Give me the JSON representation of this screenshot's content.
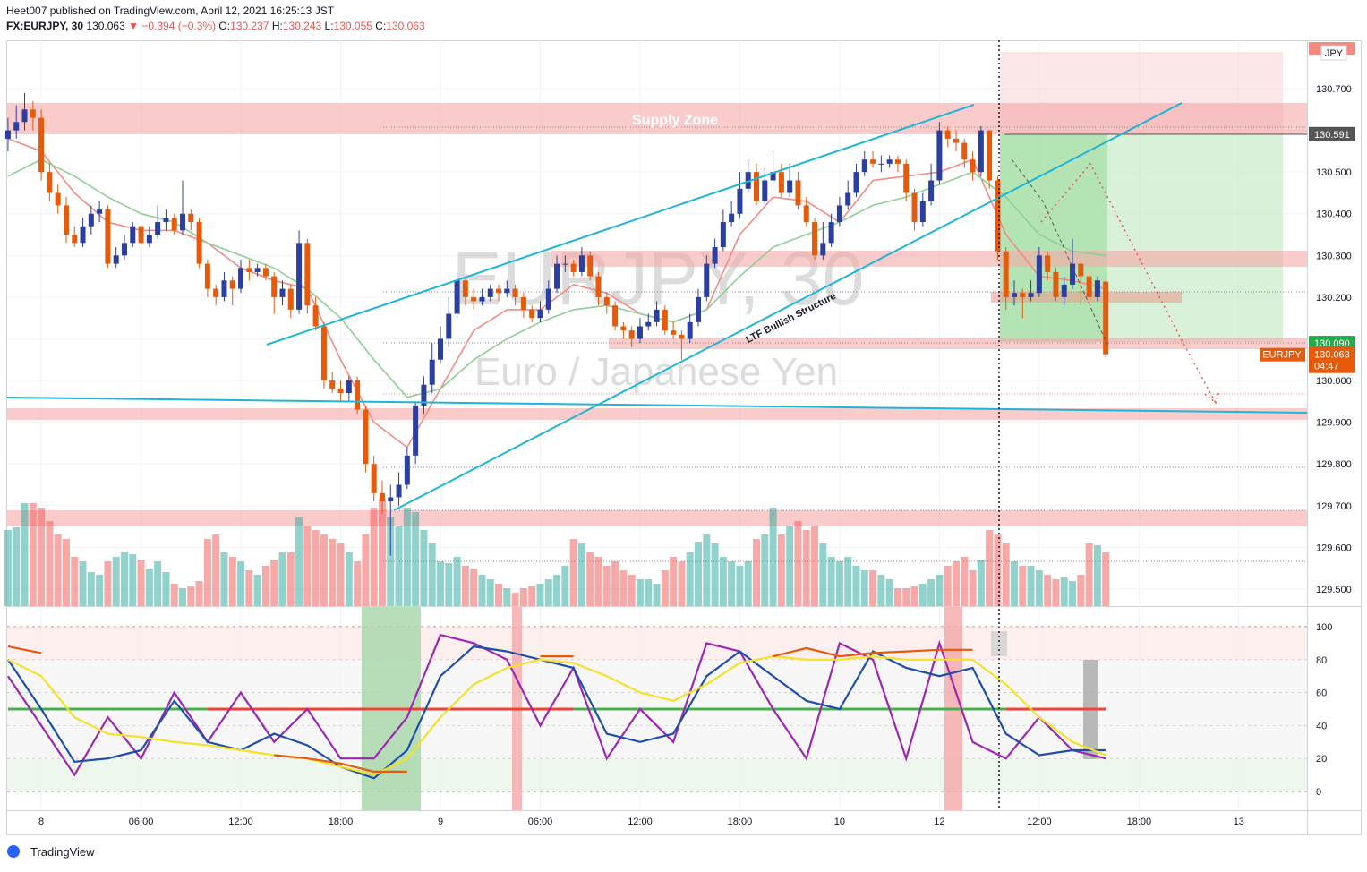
{
  "chart_data": {
    "type": "candlestick",
    "header": {
      "publisher": "Heet007 published on TradingView.com, April 12, 2021 16:25:13 JST",
      "symbol": "FX:EURJPY, 30",
      "change": "▼ −0.394 (−0.3%)",
      "ohlc_labels": [
        "O:",
        "H:",
        "L:",
        "C:"
      ]
    },
    "watermark": {
      "symbol": "EURJPY, 30",
      "name": "Euro / Japanese Yen"
    },
    "annotations": {
      "supply": "Supply Zone",
      "structure": "LTF Bullish Structure"
    },
    "footer": "TradingView",
    "axis_currency": "JPY",
    "last_label": "EURJPY",
    "countdown": "04:47",
    "up_color": "#2b3fa0",
    "down_color": "#e65a0c",
    "volume_up_color": "rgba(38,166,154,0.5)",
    "volume_down_color": "rgba(239,83,80,0.5)",
    "xlim": [
      -0.1,
      156.2
    ],
    "xticks": [
      {
        "value": 4,
        "label": "8"
      },
      {
        "value": 16,
        "label": "06:00"
      },
      {
        "value": 28,
        "label": "12:00"
      },
      {
        "value": 40,
        "label": "18:00"
      },
      {
        "value": 52,
        "label": "9"
      },
      {
        "value": 64,
        "label": "06:00"
      },
      {
        "value": 76,
        "label": "12:00"
      },
      {
        "value": 88,
        "label": "18:00"
      },
      {
        "value": 100,
        "label": "10"
      },
      {
        "value": 112,
        "label": "12"
      },
      {
        "value": 124,
        "label": "12:00"
      },
      {
        "value": 136,
        "label": "18:00"
      },
      {
        "value": 148,
        "label": "13"
      }
    ],
    "ylim": [
      129.459,
      130.816
    ],
    "yticks": [
      {
        "value": 130.7,
        "label": "130.700"
      },
      {
        "value": 130.6,
        "label": "130.600"
      },
      {
        "value": 130.5,
        "label": "130.500"
      },
      {
        "value": 130.4,
        "label": "130.400"
      },
      {
        "value": 130.3,
        "label": "130.300"
      },
      {
        "value": 130.2,
        "label": "130.200"
      },
      {
        "value": 130.1,
        "label": "130.100"
      },
      {
        "value": 130.0,
        "label": "130.000"
      },
      {
        "value": 129.9,
        "label": "129.900"
      },
      {
        "value": 129.8,
        "label": "129.800"
      },
      {
        "value": 129.7,
        "label": "129.700"
      },
      {
        "value": 129.6,
        "label": "129.600"
      },
      {
        "value": 129.5,
        "label": "129.500"
      }
    ],
    "levels": [
      {
        "value": 130.591,
        "label": "130.591",
        "color": "#555555"
      },
      {
        "value": 130.09,
        "label": "130.090",
        "color": "#22ab4a"
      }
    ],
    "candles": [
      [
        130.58,
        130.63,
        130.55,
        130.6
      ],
      [
        130.6,
        130.66,
        130.58,
        130.62
      ],
      [
        130.62,
        130.69,
        130.6,
        130.65
      ],
      [
        130.65,
        130.67,
        130.6,
        130.63
      ],
      [
        130.63,
        130.65,
        130.48,
        130.5
      ],
      [
        130.5,
        130.52,
        130.43,
        130.45
      ],
      [
        130.45,
        130.47,
        130.4,
        130.42
      ],
      [
        130.42,
        130.44,
        130.33,
        130.35
      ],
      [
        130.35,
        130.37,
        130.32,
        130.33
      ],
      [
        130.33,
        130.39,
        130.32,
        130.37
      ],
      [
        130.37,
        130.42,
        130.35,
        130.4
      ],
      [
        130.4,
        130.43,
        130.38,
        130.41
      ],
      [
        130.41,
        130.42,
        130.27,
        130.28
      ],
      [
        130.28,
        130.32,
        130.27,
        130.3
      ],
      [
        130.3,
        130.35,
        130.29,
        130.33
      ],
      [
        130.33,
        130.38,
        130.32,
        130.37
      ],
      [
        130.37,
        130.38,
        130.26,
        130.33
      ],
      [
        130.33,
        130.37,
        130.32,
        130.35
      ],
      [
        130.35,
        130.42,
        130.34,
        130.38
      ],
      [
        130.38,
        130.41,
        130.36,
        130.39
      ],
      [
        130.39,
        130.4,
        130.35,
        130.36
      ],
      [
        130.36,
        130.48,
        130.35,
        130.4
      ],
      [
        130.4,
        130.41,
        130.36,
        130.38
      ],
      [
        130.38,
        130.39,
        130.27,
        130.28
      ],
      [
        130.28,
        130.29,
        130.2,
        130.22
      ],
      [
        130.22,
        130.23,
        130.18,
        130.2
      ],
      [
        130.2,
        130.26,
        130.19,
        130.24
      ],
      [
        130.24,
        130.25,
        130.18,
        130.22
      ],
      [
        130.22,
        130.29,
        130.21,
        130.27
      ],
      [
        130.27,
        130.29,
        130.24,
        130.26
      ],
      [
        130.26,
        130.28,
        130.25,
        130.27
      ],
      [
        130.27,
        130.28,
        130.24,
        130.25
      ],
      [
        130.25,
        130.26,
        130.16,
        130.2
      ],
      [
        130.2,
        130.24,
        130.18,
        130.22
      ],
      [
        130.22,
        130.23,
        130.15,
        130.17
      ],
      [
        130.17,
        130.36,
        130.16,
        130.33
      ],
      [
        130.33,
        130.34,
        130.16,
        130.18
      ],
      [
        130.18,
        130.2,
        130.12,
        130.13
      ],
      [
        130.13,
        130.14,
        129.98,
        130.0
      ],
      [
        130.0,
        130.02,
        129.97,
        129.98
      ],
      [
        129.98,
        130.0,
        129.95,
        129.97
      ],
      [
        129.97,
        130.01,
        129.95,
        130.0
      ],
      [
        130.0,
        130.01,
        129.92,
        129.93
      ],
      [
        129.93,
        129.94,
        129.78,
        129.8
      ],
      [
        129.8,
        129.82,
        129.71,
        129.73
      ],
      [
        129.73,
        129.76,
        129.68,
        129.71
      ],
      [
        129.71,
        129.75,
        129.58,
        129.72
      ],
      [
        129.72,
        129.78,
        129.7,
        129.75
      ],
      [
        129.75,
        129.84,
        129.74,
        129.82
      ],
      [
        129.82,
        129.95,
        129.8,
        129.94
      ],
      [
        129.94,
        130.01,
        129.92,
        129.99
      ],
      [
        129.99,
        130.09,
        129.97,
        130.05
      ],
      [
        130.05,
        130.13,
        130.04,
        130.1
      ],
      [
        130.1,
        130.2,
        130.08,
        130.16
      ],
      [
        130.16,
        130.26,
        130.15,
        130.24
      ],
      [
        130.24,
        130.25,
        130.18,
        130.2
      ],
      [
        130.2,
        130.22,
        130.17,
        130.19
      ],
      [
        130.19,
        130.22,
        130.18,
        130.2
      ],
      [
        130.2,
        130.23,
        130.19,
        130.22
      ],
      [
        130.22,
        130.23,
        130.19,
        130.21
      ],
      [
        130.21,
        130.24,
        130.2,
        130.22
      ],
      [
        130.22,
        130.23,
        130.18,
        130.2
      ],
      [
        130.2,
        130.21,
        130.15,
        130.17
      ],
      [
        130.17,
        130.18,
        130.14,
        130.15
      ],
      [
        130.15,
        130.19,
        130.14,
        130.17
      ],
      [
        130.17,
        130.24,
        130.16,
        130.22
      ],
      [
        130.22,
        130.3,
        130.21,
        130.28
      ],
      [
        130.28,
        130.3,
        130.26,
        130.28
      ],
      [
        130.28,
        130.29,
        130.25,
        130.26
      ],
      [
        130.26,
        130.32,
        130.25,
        130.3
      ],
      [
        130.3,
        130.31,
        130.24,
        130.25
      ],
      [
        130.25,
        130.26,
        130.18,
        130.2
      ],
      [
        130.2,
        130.21,
        130.16,
        130.18
      ],
      [
        130.18,
        130.19,
        130.12,
        130.13
      ],
      [
        130.13,
        130.14,
        130.1,
        130.12
      ],
      [
        130.12,
        130.13,
        130.08,
        130.1
      ],
      [
        130.1,
        130.15,
        130.09,
        130.13
      ],
      [
        130.13,
        130.16,
        130.12,
        130.14
      ],
      [
        130.14,
        130.19,
        130.13,
        130.17
      ],
      [
        130.17,
        130.18,
        130.11,
        130.12
      ],
      [
        130.12,
        130.14,
        130.1,
        130.11
      ],
      [
        130.11,
        130.12,
        130.05,
        130.1
      ],
      [
        130.1,
        130.16,
        130.09,
        130.14
      ],
      [
        130.14,
        130.22,
        130.13,
        130.2
      ],
      [
        130.2,
        130.3,
        130.19,
        130.28
      ],
      [
        130.28,
        130.34,
        130.27,
        130.32
      ],
      [
        130.32,
        130.41,
        130.31,
        130.38
      ],
      [
        130.38,
        130.43,
        130.37,
        130.4
      ],
      [
        130.4,
        130.5,
        130.39,
        130.46
      ],
      [
        130.46,
        130.53,
        130.45,
        130.5
      ],
      [
        130.5,
        130.52,
        130.42,
        130.43
      ],
      [
        130.43,
        130.51,
        130.42,
        130.48
      ],
      [
        130.48,
        130.55,
        130.47,
        130.5
      ],
      [
        130.5,
        130.52,
        130.44,
        130.45
      ],
      [
        130.45,
        130.52,
        130.44,
        130.48
      ],
      [
        130.48,
        130.5,
        130.41,
        130.42
      ],
      [
        130.42,
        130.44,
        130.37,
        130.38
      ],
      [
        130.38,
        130.39,
        130.29,
        130.3
      ],
      [
        130.3,
        130.38,
        130.29,
        130.33
      ],
      [
        130.33,
        130.4,
        130.32,
        130.38
      ],
      [
        130.38,
        130.44,
        130.37,
        130.42
      ],
      [
        130.42,
        130.48,
        130.41,
        130.45
      ],
      [
        130.45,
        130.52,
        130.44,
        130.5
      ],
      [
        130.5,
        130.55,
        130.49,
        130.53
      ],
      [
        130.53,
        130.55,
        130.51,
        130.52
      ],
      [
        130.52,
        130.54,
        130.5,
        130.52
      ],
      [
        130.52,
        130.54,
        130.51,
        130.53
      ],
      [
        130.53,
        130.54,
        130.5,
        130.52
      ],
      [
        130.52,
        130.53,
        130.43,
        130.45
      ],
      [
        130.45,
        130.46,
        130.36,
        130.38
      ],
      [
        130.38,
        130.45,
        130.37,
        130.43
      ],
      [
        130.43,
        130.52,
        130.42,
        130.48
      ],
      [
        130.48,
        130.62,
        130.47,
        130.6
      ],
      [
        130.6,
        130.61,
        130.56,
        130.58
      ],
      [
        130.58,
        130.6,
        130.55,
        130.57
      ],
      [
        130.57,
        130.58,
        130.51,
        130.53
      ],
      [
        130.53,
        130.55,
        130.48,
        130.5
      ],
      [
        130.5,
        130.61,
        130.49,
        130.6
      ],
      [
        130.6,
        130.6,
        130.46,
        130.48
      ],
      [
        130.48,
        130.49,
        130.29,
        130.31
      ],
      [
        130.31,
        130.32,
        130.17,
        130.2
      ],
      [
        130.2,
        130.24,
        130.18,
        130.21
      ],
      [
        130.21,
        130.22,
        130.15,
        130.2
      ],
      [
        130.2,
        130.24,
        130.19,
        130.21
      ],
      [
        130.21,
        130.32,
        130.2,
        130.3
      ],
      [
        130.3,
        130.31,
        130.24,
        130.26
      ],
      [
        130.26,
        130.27,
        130.19,
        130.2
      ],
      [
        130.2,
        130.25,
        130.18,
        130.23
      ],
      [
        130.23,
        130.34,
        130.22,
        130.28
      ],
      [
        130.28,
        130.29,
        130.18,
        130.25
      ],
      [
        130.25,
        130.26,
        130.19,
        130.2
      ],
      [
        130.2,
        130.25,
        130.19,
        130.24
      ],
      [
        130.237,
        130.243,
        130.055,
        130.063
      ]
    ],
    "volumes": [
      85,
      88,
      115,
      115,
      110,
      95,
      80,
      75,
      55,
      50,
      38,
      35,
      50,
      55,
      60,
      58,
      52,
      42,
      50,
      38,
      25,
      20,
      22,
      28,
      75,
      80,
      60,
      55,
      50,
      40,
      35,
      45,
      52,
      60,
      60,
      100,
      90,
      85,
      80,
      75,
      70,
      60,
      50,
      80,
      110,
      120,
      100,
      90,
      110,
      105,
      85,
      70,
      50,
      48,
      55,
      45,
      42,
      35,
      30,
      25,
      20,
      15,
      20,
      22,
      25,
      30,
      35,
      45,
      75,
      70,
      60,
      55,
      45,
      50,
      40,
      35,
      30,
      30,
      25,
      40,
      55,
      50,
      60,
      72,
      80,
      70,
      55,
      50,
      45,
      50,
      75,
      80,
      110,
      80,
      90,
      95,
      85,
      90,
      70,
      55,
      50,
      55,
      45,
      40,
      40,
      35,
      30,
      20,
      20,
      22,
      25,
      30,
      35,
      45,
      50,
      55,
      40,
      52,
      85,
      80,
      70,
      50,
      45,
      45,
      40,
      35,
      30,
      32,
      28,
      35,
      70,
      68,
      60
    ],
    "indicator_x": [
      0,
      4,
      8,
      12,
      16,
      20,
      24,
      28,
      32,
      36,
      40,
      44,
      48,
      52,
      56,
      60,
      64,
      68,
      72,
      76,
      80,
      84,
      88,
      92,
      96,
      100,
      104,
      108,
      112,
      116,
      120,
      124,
      128,
      132
    ],
    "ema": [
      {
        "color": "#f28b82",
        "values": [
          130.58,
          130.55,
          130.45,
          130.38,
          130.36,
          130.36,
          130.33,
          130.27,
          130.24,
          130.22,
          130.05,
          129.9,
          129.84,
          129.98,
          130.12,
          130.17,
          130.17,
          130.23,
          130.21,
          130.16,
          130.14,
          130.17,
          130.35,
          130.44,
          130.43,
          130.38,
          130.48,
          130.49,
          130.5,
          130.53,
          130.35,
          130.25,
          130.24,
          130.22
        ]
      },
      {
        "color": "#8fcf94",
        "values": [
          130.49,
          130.53,
          130.49,
          130.44,
          130.4,
          130.38,
          130.33,
          130.3,
          130.27,
          130.22,
          130.15,
          130.05,
          129.96,
          129.98,
          130.05,
          130.1,
          130.14,
          130.17,
          130.18,
          130.16,
          130.14,
          130.17,
          130.25,
          130.32,
          130.35,
          130.38,
          130.42,
          130.44,
          130.47,
          130.5,
          130.44,
          130.35,
          130.31,
          130.3
        ]
      }
    ],
    "oscillator": {
      "ylim": [
        -11.4,
        112.5
      ],
      "yticks": [
        0,
        20,
        40,
        60,
        80,
        100
      ],
      "series": [
        {
          "color": "#9c27b0",
          "values": [
            70,
            40,
            10,
            45,
            20,
            60,
            30,
            60,
            30,
            50,
            20,
            20,
            45,
            95,
            90,
            80,
            40,
            75,
            20,
            50,
            30,
            90,
            85,
            50,
            20,
            90,
            80,
            20,
            90,
            30,
            20,
            45,
            25,
            20
          ]
        },
        {
          "color": "#1e4fa8",
          "values": [
            80,
            50,
            18,
            20,
            25,
            55,
            30,
            25,
            35,
            28,
            15,
            8,
            25,
            70,
            88,
            85,
            80,
            75,
            35,
            30,
            35,
            70,
            85,
            70,
            55,
            50,
            85,
            75,
            70,
            75,
            35,
            22,
            25,
            25
          ]
        },
        {
          "color": "#f5e02a",
          "values": [
            80,
            70,
            45,
            35,
            33,
            30,
            28,
            25,
            22,
            20,
            15,
            10,
            20,
            45,
            65,
            75,
            80,
            78,
            70,
            60,
            55,
            65,
            78,
            82,
            80,
            80,
            82,
            80,
            80,
            80,
            65,
            45,
            30,
            22
          ]
        },
        {
          "color": "#e65a0c",
          "values": [
            88,
            84,
            null,
            null,
            null,
            null,
            null,
            null,
            22,
            20,
            17,
            12,
            12,
            null,
            null,
            null,
            82,
            82,
            null,
            null,
            null,
            null,
            null,
            82,
            87,
            82,
            84,
            85,
            86,
            86,
            null,
            null,
            null,
            null
          ]
        }
      ],
      "midline": {
        "x": [
          0,
          24,
          68,
          120,
          132
        ],
        "values": [
          50,
          50,
          50,
          50,
          50
        ],
        "segment_colors": [
          "#4caf50",
          "#f44336",
          "#4caf50",
          "#f44336"
        ]
      }
    }
  }
}
